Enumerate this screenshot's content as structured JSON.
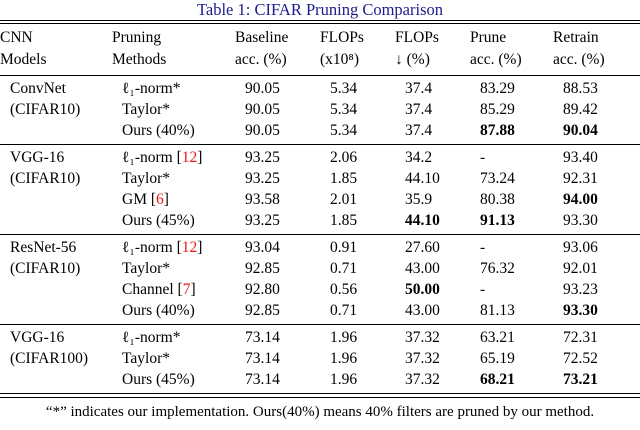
{
  "title": "Table 1: CIFAR Pruning Comparison",
  "colors": {
    "title_navy": "#1b1b8c",
    "citation_red": "#ee1414",
    "text": "#000000"
  },
  "header": {
    "columns": [
      {
        "line1": "CNN",
        "line2": "Models"
      },
      {
        "line1": "Pruning",
        "line2": "Methods"
      },
      {
        "line1": "Baseline",
        "line2": "acc. (%)"
      },
      {
        "line1": "FLOPs",
        "line2": "(x10⁸)"
      },
      {
        "line1": "FLOPs",
        "line2": "↓ (%)"
      },
      {
        "line1": "Prune",
        "line2": "acc. (%)"
      },
      {
        "line1": "Retrain",
        "line2": "acc. (%)"
      }
    ]
  },
  "blocks": [
    {
      "model_line1": "ConvNet",
      "model_line2": "(CIFAR10)",
      "rows": [
        {
          "method_pre": "ℓ₁-norm*",
          "cells": [
            {
              "t": "90.05"
            },
            {
              "t": "5.34"
            },
            {
              "t": "37.4"
            },
            {
              "t": "83.29"
            },
            {
              "t": "88.53"
            }
          ]
        },
        {
          "method_pre": "Taylor*",
          "cells": [
            {
              "t": "90.05"
            },
            {
              "t": "5.34"
            },
            {
              "t": "37.4"
            },
            {
              "t": "85.29"
            },
            {
              "t": "89.42"
            }
          ]
        },
        {
          "method_pre": "Ours (40%)",
          "cells": [
            {
              "t": "90.05"
            },
            {
              "t": "5.34"
            },
            {
              "t": "37.4"
            },
            {
              "t": "87.88",
              "b": true
            },
            {
              "t": "90.04",
              "b": true
            }
          ]
        }
      ]
    },
    {
      "model_line1": "VGG-16",
      "model_line2": "(CIFAR10)",
      "rows": [
        {
          "method_pre": "ℓ₁-norm [",
          "method_cite": "12",
          "method_post": "]",
          "cells": [
            {
              "t": "93.25"
            },
            {
              "t": "2.06"
            },
            {
              "t": "34.2"
            },
            {
              "t": "-"
            },
            {
              "t": "93.40"
            }
          ]
        },
        {
          "method_pre": "Taylor*",
          "cells": [
            {
              "t": "93.25"
            },
            {
              "t": "1.85"
            },
            {
              "t": "44.10"
            },
            {
              "t": "73.24"
            },
            {
              "t": "92.31"
            }
          ]
        },
        {
          "method_pre": "GM [",
          "method_cite": "6",
          "method_post": "]",
          "cells": [
            {
              "t": "93.58"
            },
            {
              "t": "2.01"
            },
            {
              "t": "35.9"
            },
            {
              "t": "80.38"
            },
            {
              "t": "94.00",
              "b": true
            }
          ]
        },
        {
          "method_pre": "Ours (45%)",
          "cells": [
            {
              "t": "93.25"
            },
            {
              "t": "1.85"
            },
            {
              "t": "44.10",
              "b": true
            },
            {
              "t": "91.13",
              "b": true
            },
            {
              "t": "93.30"
            }
          ]
        }
      ]
    },
    {
      "model_line1": "ResNet-56",
      "model_line2": "(CIFAR10)",
      "rows": [
        {
          "method_pre": "ℓ₁-norm [",
          "method_cite": "12",
          "method_post": "]",
          "cells": [
            {
              "t": "93.04"
            },
            {
              "t": "0.91"
            },
            {
              "t": "27.60"
            },
            {
              "t": "-"
            },
            {
              "t": "93.06"
            }
          ]
        },
        {
          "method_pre": "Taylor*",
          "cells": [
            {
              "t": "92.85"
            },
            {
              "t": "0.71"
            },
            {
              "t": "43.00"
            },
            {
              "t": "76.32"
            },
            {
              "t": "92.01"
            }
          ]
        },
        {
          "method_pre": "Channel [",
          "method_cite": "7",
          "method_post": "]",
          "cells": [
            {
              "t": "92.80"
            },
            {
              "t": "0.56"
            },
            {
              "t": "50.00",
              "b": true
            },
            {
              "t": "-"
            },
            {
              "t": "93.23"
            }
          ]
        },
        {
          "method_pre": "Ours (40%)",
          "cells": [
            {
              "t": "92.85"
            },
            {
              "t": "0.71"
            },
            {
              "t": "43.00"
            },
            {
              "t": "81.13"
            },
            {
              "t": "93.30",
              "b": true
            }
          ]
        }
      ]
    },
    {
      "model_line1": "VGG-16",
      "model_line2": "(CIFAR100)",
      "rows": [
        {
          "method_pre": "ℓ₁-norm*",
          "cells": [
            {
              "t": "73.14"
            },
            {
              "t": "1.96"
            },
            {
              "t": "37.32"
            },
            {
              "t": "63.21"
            },
            {
              "t": "72.31"
            }
          ]
        },
        {
          "method_pre": "Taylor*",
          "cells": [
            {
              "t": "73.14"
            },
            {
              "t": "1.96"
            },
            {
              "t": "37.32"
            },
            {
              "t": "65.19"
            },
            {
              "t": "72.52"
            }
          ]
        },
        {
          "method_pre": "Ours (45%)",
          "cells": [
            {
              "t": "73.14"
            },
            {
              "t": "1.96"
            },
            {
              "t": "37.32"
            },
            {
              "t": "68.21",
              "b": true
            },
            {
              "t": "73.21",
              "b": true
            }
          ]
        }
      ]
    }
  ],
  "footnote": "“*” indicates our implementation. Ours(40%) means 40% filters are pruned by our method."
}
